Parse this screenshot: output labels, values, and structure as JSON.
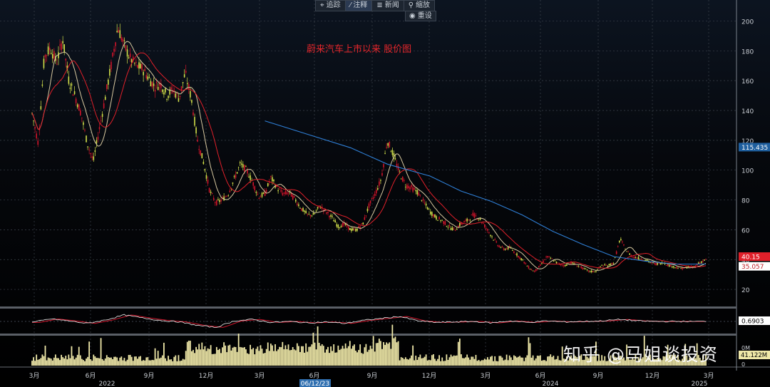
{
  "toolbar": {
    "track": {
      "icon": "crosshair-icon",
      "label": "追踪"
    },
    "annotate": {
      "icon": "pencil-icon",
      "label": "注释"
    },
    "news": {
      "icon": "news-icon",
      "label": "新闻"
    },
    "zoom": {
      "icon": "magnifier-icon",
      "label": "缩放"
    },
    "reset": {
      "icon": "radio-icon",
      "label": "重设"
    }
  },
  "watermark": "知乎 @马姐谈投资",
  "chart_data": {
    "type": "line",
    "title": "蔚来汽车上市以来 股价图",
    "price_axis": {
      "ylim": [
        10,
        205
      ],
      "ticks": [
        20,
        40,
        60,
        80,
        100,
        120,
        140,
        160,
        180,
        200
      ]
    },
    "price_labels": {
      "ma_long": "115.435",
      "last": "40.15",
      "ma_mid": "35.057"
    },
    "oscillator_label": "0.6903",
    "volume_labels": {
      "top": "0M",
      "value": "41.122M",
      "bottom": "0"
    },
    "x_month_ticks": [
      "3月",
      "6月",
      "9月",
      "12月",
      "3月",
      "6月",
      "9月",
      "12月",
      "3月",
      "6月",
      "9月",
      "12月",
      "3月"
    ],
    "x_year_labels": [
      "2022",
      "2024",
      "2025"
    ],
    "cursor_date": "06/12/23",
    "colors": {
      "up": "#d2e04a",
      "down": "#d0142a",
      "ma_short": "#d8c9a0",
      "ma_mid": "#e0202a",
      "ma_long": "#2f7fd6",
      "volume": "#efe8a8"
    },
    "price_path": [
      [
        0,
        138
      ],
      [
        1,
        118
      ],
      [
        2,
        176
      ],
      [
        3,
        182
      ],
      [
        4,
        172
      ],
      [
        5,
        188
      ],
      [
        6,
        160
      ],
      [
        7,
        150
      ],
      [
        8,
        138
      ],
      [
        9,
        118
      ],
      [
        10,
        106
      ],
      [
        11,
        128
      ],
      [
        12,
        150
      ],
      [
        13,
        172
      ],
      [
        14,
        196
      ],
      [
        15,
        184
      ],
      [
        16,
        175
      ],
      [
        17,
        170
      ],
      [
        18,
        168
      ],
      [
        19,
        162
      ],
      [
        20,
        156
      ],
      [
        21,
        158
      ],
      [
        22,
        150
      ],
      [
        23,
        154
      ],
      [
        24,
        148
      ],
      [
        25,
        165
      ],
      [
        26,
        148
      ],
      [
        27,
        120
      ],
      [
        28,
        105
      ],
      [
        29,
        86
      ],
      [
        30,
        78
      ],
      [
        31,
        80
      ],
      [
        32,
        84
      ],
      [
        33,
        94
      ],
      [
        34,
        104
      ],
      [
        35,
        100
      ],
      [
        36,
        92
      ],
      [
        37,
        82
      ],
      [
        38,
        84
      ],
      [
        39,
        95
      ],
      [
        40,
        88
      ],
      [
        41,
        84
      ],
      [
        42,
        85
      ],
      [
        43,
        80
      ],
      [
        44,
        74
      ],
      [
        45,
        70
      ],
      [
        46,
        70
      ],
      [
        47,
        76
      ],
      [
        48,
        72
      ],
      [
        49,
        68
      ],
      [
        50,
        62
      ],
      [
        51,
        64
      ],
      [
        52,
        60
      ],
      [
        53,
        60
      ],
      [
        54,
        64
      ],
      [
        55,
        76
      ],
      [
        56,
        84
      ],
      [
        57,
        94
      ],
      [
        58,
        120
      ],
      [
        59,
        110
      ],
      [
        60,
        98
      ],
      [
        61,
        90
      ],
      [
        62,
        88
      ],
      [
        63,
        85
      ],
      [
        64,
        78
      ],
      [
        65,
        72
      ],
      [
        66,
        68
      ],
      [
        67,
        66
      ],
      [
        68,
        62
      ],
      [
        69,
        60
      ],
      [
        70,
        64
      ],
      [
        71,
        66
      ],
      [
        72,
        70
      ],
      [
        73,
        68
      ],
      [
        74,
        62
      ],
      [
        75,
        56
      ],
      [
        76,
        50
      ],
      [
        77,
        47
      ],
      [
        78,
        48
      ],
      [
        79,
        44
      ],
      [
        80,
        40
      ],
      [
        81,
        35
      ],
      [
        82,
        32
      ],
      [
        83,
        36
      ],
      [
        84,
        42
      ],
      [
        85,
        40
      ],
      [
        86,
        37
      ],
      [
        87,
        36
      ],
      [
        88,
        38
      ],
      [
        89,
        36
      ],
      [
        90,
        34
      ],
      [
        91,
        32
      ],
      [
        92,
        32
      ],
      [
        93,
        36
      ],
      [
        94,
        36
      ],
      [
        95,
        38
      ],
      [
        96,
        54
      ],
      [
        97,
        46
      ],
      [
        98,
        42
      ],
      [
        99,
        41
      ],
      [
        100,
        40
      ],
      [
        101,
        38
      ],
      [
        102,
        37
      ],
      [
        103,
        38
      ],
      [
        104,
        36
      ],
      [
        105,
        35
      ],
      [
        106,
        34
      ],
      [
        107,
        35
      ],
      [
        108,
        35
      ],
      [
        109,
        38
      ],
      [
        110,
        40
      ]
    ],
    "ma_long_path": [
      [
        38,
        133
      ],
      [
        45,
        124
      ],
      [
        52,
        115
      ],
      [
        58,
        104
      ],
      [
        65,
        96
      ],
      [
        70,
        86
      ],
      [
        75,
        79
      ],
      [
        80,
        70
      ],
      [
        85,
        59
      ],
      [
        90,
        50
      ],
      [
        95,
        42
      ],
      [
        100,
        39
      ],
      [
        105,
        37
      ],
      [
        110,
        37
      ]
    ],
    "oscillator_path": [
      [
        0,
        -0.2
      ],
      [
        3,
        0.5
      ],
      [
        6,
        0.1
      ],
      [
        9,
        -0.4
      ],
      [
        12,
        0.3
      ],
      [
        15,
        1.3
      ],
      [
        18,
        0.7
      ],
      [
        21,
        0.2
      ],
      [
        24,
        -0.1
      ],
      [
        27,
        -0.8
      ],
      [
        30,
        -1.2
      ],
      [
        33,
        0.1
      ],
      [
        36,
        0.4
      ],
      [
        39,
        -0.2
      ],
      [
        42,
        0.0
      ],
      [
        45,
        -0.3
      ],
      [
        48,
        -0.1
      ],
      [
        51,
        -0.4
      ],
      [
        54,
        0.2
      ],
      [
        57,
        0.6
      ],
      [
        60,
        1.0
      ],
      [
        63,
        0.1
      ],
      [
        66,
        -0.2
      ],
      [
        69,
        -0.1
      ],
      [
        72,
        0.0
      ],
      [
        75,
        -0.3
      ],
      [
        78,
        0.1
      ],
      [
        81,
        -0.2
      ],
      [
        84,
        0.1
      ],
      [
        87,
        -0.1
      ],
      [
        90,
        0.0
      ],
      [
        93,
        0.1
      ],
      [
        96,
        0.4
      ],
      [
        99,
        0.1
      ],
      [
        102,
        0.0
      ],
      [
        105,
        0.0
      ],
      [
        108,
        0.0
      ],
      [
        110,
        0.0
      ]
    ]
  }
}
